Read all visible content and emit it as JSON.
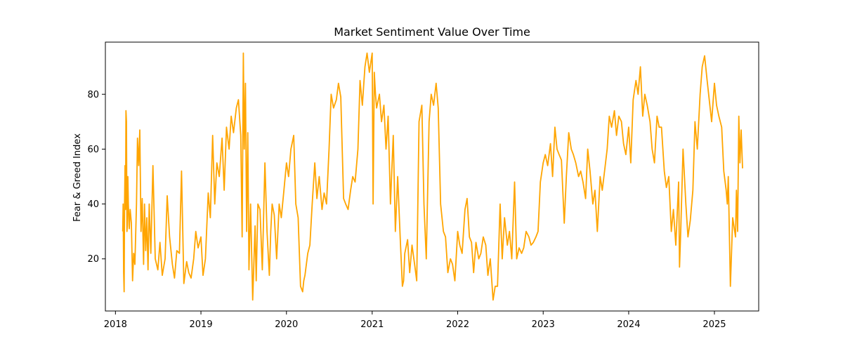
{
  "chart_data": {
    "type": "line",
    "title": "Market Sentiment Value Over Time",
    "xlabel": "",
    "ylabel": "Fear & Greed Index",
    "x_ticks": [
      "2018",
      "2019",
      "2020",
      "2021",
      "2022",
      "2023",
      "2024",
      "2025"
    ],
    "y_ticks": [
      "20",
      "40",
      "60",
      "80"
    ],
    "xlim": [
      "2017-11-19",
      "2025-07-09"
    ],
    "ylim": [
      1,
      99
    ],
    "grid": false,
    "legend": "none",
    "series_color": "#FFA500",
    "series": [
      {
        "x": [
          "2018-02-01",
          "2018-02-03",
          "2018-02-05",
          "2018-02-07",
          "2018-02-09",
          "2018-02-11",
          "2018-02-13",
          "2018-02-15",
          "2018-02-17",
          "2018-02-19",
          "2018-02-21",
          "2018-02-23",
          "2018-02-25",
          "2018-03-01",
          "2018-03-05",
          "2018-03-10",
          "2018-03-15",
          "2018-03-20",
          "2018-03-25",
          "2018-04-01",
          "2018-04-05",
          "2018-04-10",
          "2018-04-15",
          "2018-04-20",
          "2018-04-25",
          "2018-05-01",
          "2018-05-05",
          "2018-05-10",
          "2018-05-15",
          "2018-05-20",
          "2018-05-25",
          "2018-06-01",
          "2018-06-10",
          "2018-06-20",
          "2018-07-01",
          "2018-07-10",
          "2018-07-20",
          "2018-08-01",
          "2018-08-10",
          "2018-08-20",
          "2018-09-01",
          "2018-09-10",
          "2018-09-20",
          "2018-10-01",
          "2018-10-10",
          "2018-10-20",
          "2018-11-01",
          "2018-11-10",
          "2018-11-20",
          "2018-12-01",
          "2018-12-10",
          "2018-12-20",
          "2019-01-01",
          "2019-01-10",
          "2019-01-20",
          "2019-02-01",
          "2019-02-10",
          "2019-02-20",
          "2019-03-01",
          "2019-03-10",
          "2019-03-20",
          "2019-04-01",
          "2019-04-10",
          "2019-04-20",
          "2019-05-01",
          "2019-05-10",
          "2019-05-20",
          "2019-06-01",
          "2019-06-10",
          "2019-06-20",
          "2019-06-26",
          "2019-07-01",
          "2019-07-05",
          "2019-07-10",
          "2019-07-15",
          "2019-07-20",
          "2019-07-25",
          "2019-08-01",
          "2019-08-10",
          "2019-08-20",
          "2019-08-25",
          "2019-09-01",
          "2019-09-10",
          "2019-09-20",
          "2019-10-01",
          "2019-10-10",
          "2019-10-20",
          "2019-10-26",
          "2019-11-01",
          "2019-11-10",
          "2019-11-20",
          "2019-12-01",
          "2019-12-10",
          "2019-12-20",
          "2020-01-01",
          "2020-01-10",
          "2020-01-20",
          "2020-02-01",
          "2020-02-10",
          "2020-02-20",
          "2020-03-01",
          "2020-03-10",
          "2020-03-15",
          "2020-03-20",
          "2020-04-01",
          "2020-04-10",
          "2020-04-20",
          "2020-05-01",
          "2020-05-10",
          "2020-05-20",
          "2020-06-01",
          "2020-06-10",
          "2020-06-20",
          "2020-07-01",
          "2020-07-10",
          "2020-07-20",
          "2020-08-01",
          "2020-08-10",
          "2020-08-20",
          "2020-09-01",
          "2020-09-10",
          "2020-09-20",
          "2020-10-01",
          "2020-10-10",
          "2020-10-20",
          "2020-11-01",
          "2020-11-10",
          "2020-11-20",
          "2020-12-01",
          "2020-12-10",
          "2020-12-20",
          "2021-01-01",
          "2021-01-05",
          "2021-01-10",
          "2021-01-15",
          "2021-01-20",
          "2021-02-01",
          "2021-02-10",
          "2021-02-20",
          "2021-03-01",
          "2021-03-10",
          "2021-03-20",
          "2021-04-01",
          "2021-04-10",
          "2021-04-20",
          "2021-05-01",
          "2021-05-10",
          "2021-05-15",
          "2021-05-20",
          "2021-06-01",
          "2021-06-10",
          "2021-06-20",
          "2021-07-01",
          "2021-07-10",
          "2021-07-20",
          "2021-08-01",
          "2021-08-10",
          "2021-08-20",
          "2021-09-01",
          "2021-09-10",
          "2021-09-20",
          "2021-10-01",
          "2021-10-10",
          "2021-10-20",
          "2021-11-01",
          "2021-11-10",
          "2021-11-20",
          "2021-12-01",
          "2021-12-10",
          "2021-12-20",
          "2022-01-01",
          "2022-01-10",
          "2022-01-20",
          "2022-02-01",
          "2022-02-10",
          "2022-02-20",
          "2022-03-01",
          "2022-03-10",
          "2022-03-20",
          "2022-04-01",
          "2022-04-10",
          "2022-04-20",
          "2022-05-01",
          "2022-05-10",
          "2022-05-20",
          "2022-06-01",
          "2022-06-10",
          "2022-06-20",
          "2022-07-01",
          "2022-07-10",
          "2022-07-20",
          "2022-08-01",
          "2022-08-10",
          "2022-08-20",
          "2022-09-01",
          "2022-09-10",
          "2022-09-20",
          "2022-10-01",
          "2022-10-10",
          "2022-10-20",
          "2022-11-01",
          "2022-11-10",
          "2022-11-20",
          "2022-12-01",
          "2022-12-10",
          "2022-12-20",
          "2023-01-01",
          "2023-01-10",
          "2023-01-20",
          "2023-02-01",
          "2023-02-10",
          "2023-02-20",
          "2023-03-01",
          "2023-03-10",
          "2023-03-20",
          "2023-04-01",
          "2023-04-10",
          "2023-04-20",
          "2023-05-01",
          "2023-05-10",
          "2023-05-20",
          "2023-06-01",
          "2023-06-10",
          "2023-06-20",
          "2023-07-01",
          "2023-07-10",
          "2023-07-20",
          "2023-08-01",
          "2023-08-10",
          "2023-08-20",
          "2023-09-01",
          "2023-09-10",
          "2023-09-20",
          "2023-10-01",
          "2023-10-10",
          "2023-10-20",
          "2023-11-01",
          "2023-11-10",
          "2023-11-20",
          "2023-12-01",
          "2023-12-10",
          "2023-12-20",
          "2024-01-01",
          "2024-01-10",
          "2024-01-20",
          "2024-02-01",
          "2024-02-10",
          "2024-02-20",
          "2024-03-01",
          "2024-03-10",
          "2024-03-20",
          "2024-04-01",
          "2024-04-10",
          "2024-04-20",
          "2024-05-01",
          "2024-05-10",
          "2024-05-20",
          "2024-06-01",
          "2024-06-10",
          "2024-06-20",
          "2024-07-01",
          "2024-07-10",
          "2024-07-20",
          "2024-08-01",
          "2024-08-05",
          "2024-08-10",
          "2024-08-20",
          "2024-09-01",
          "2024-09-10",
          "2024-09-20",
          "2024-10-01",
          "2024-10-10",
          "2024-10-20",
          "2024-11-01",
          "2024-11-10",
          "2024-11-20",
          "2024-12-01",
          "2024-12-10",
          "2024-12-20",
          "2025-01-01",
          "2025-01-10",
          "2025-01-20",
          "2025-02-01",
          "2025-02-10",
          "2025-02-20",
          "2025-02-25",
          "2025-03-01",
          "2025-03-10",
          "2025-03-20",
          "2025-04-01",
          "2025-04-05",
          "2025-04-10",
          "2025-04-15",
          "2025-04-20",
          "2025-04-25",
          "2025-05-01"
        ],
        "y": [
          30,
          40,
          15,
          8,
          40,
          54,
          38,
          74,
          70,
          30,
          32,
          50,
          40,
          31,
          38,
          33,
          12,
          22,
          18,
          40,
          64,
          54,
          67,
          30,
          42,
          18,
          40,
          23,
          35,
          16,
          40,
          22,
          54,
          20,
          16,
          26,
          14,
          20,
          43,
          28,
          18,
          13,
          23,
          22,
          52,
          11,
          19,
          15,
          13,
          20,
          30,
          24,
          28,
          14,
          20,
          44,
          35,
          65,
          40,
          55,
          50,
          64,
          45,
          68,
          60,
          72,
          66,
          75,
          78,
          65,
          28,
          95,
          60,
          84,
          30,
          66,
          16,
          40,
          5,
          32,
          12,
          40,
          38,
          16,
          55,
          30,
          14,
          30,
          40,
          36,
          20,
          40,
          35,
          44,
          55,
          50,
          60,
          65,
          40,
          35,
          10,
          8,
          12,
          14,
          22,
          25,
          40,
          55,
          42,
          50,
          38,
          44,
          40,
          60,
          80,
          75,
          78,
          84,
          79,
          42,
          40,
          38,
          45,
          50,
          48,
          60,
          85,
          76,
          90,
          95,
          88,
          95,
          40,
          88,
          80,
          75,
          80,
          70,
          76,
          60,
          72,
          40,
          65,
          30,
          50,
          27,
          10,
          12,
          22,
          27,
          15,
          25,
          18,
          12,
          70,
          76,
          40,
          20,
          70,
          80,
          76,
          84,
          75,
          40,
          30,
          28,
          15,
          20,
          18,
          12,
          30,
          25,
          22,
          38,
          42,
          28,
          26,
          15,
          26,
          20,
          22,
          28,
          25,
          14,
          20,
          5,
          10,
          10,
          40,
          20,
          35,
          25,
          30,
          20,
          48,
          20,
          24,
          22,
          24,
          30,
          28,
          25,
          26,
          28,
          30,
          48,
          55,
          58,
          54,
          62,
          50,
          68,
          60,
          58,
          56,
          33,
          50,
          66,
          60,
          58,
          55,
          50,
          52,
          48,
          42,
          60,
          52,
          40,
          45,
          30,
          50,
          45,
          52,
          60,
          72,
          68,
          74,
          65,
          72,
          70,
          62,
          58,
          68,
          55,
          78,
          85,
          80,
          90,
          72,
          80,
          76,
          70,
          60,
          55,
          72,
          68,
          68,
          52,
          46,
          50,
          30,
          38,
          25,
          48,
          17,
          30,
          60,
          40,
          28,
          34,
          45,
          70,
          60,
          80,
          90,
          94,
          85,
          78,
          70,
          84,
          76,
          72,
          68,
          52,
          45,
          40,
          50,
          10,
          35,
          28,
          45,
          30,
          72,
          55,
          67,
          53
        ]
      }
    ]
  }
}
